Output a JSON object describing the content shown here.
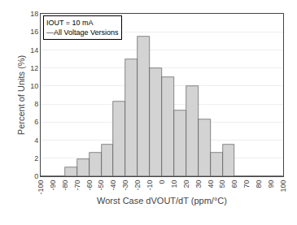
{
  "chart_data": {
    "type": "bar",
    "x": [
      -95,
      -85,
      -75,
      -65,
      -55,
      -45,
      -35,
      -25,
      -15,
      -5,
      5,
      15,
      25,
      35,
      45,
      55,
      65,
      75,
      85,
      95
    ],
    "values": [
      0,
      0,
      1.0,
      1.9,
      2.6,
      3.5,
      8.3,
      13.0,
      15.5,
      12.0,
      11.0,
      7.3,
      10.0,
      6.3,
      2.6,
      3.5,
      0,
      0,
      0,
      0
    ],
    "color": "#d3d3d3",
    "xlabel": "Worst Case dVOUT/dT (ppm/°C)",
    "ylabel": "Percent of Units (%)",
    "annotations": [
      "IOUT = 10 mA",
      "—All Voltage Versions"
    ],
    "xlim": [
      -100,
      100
    ],
    "xticks": [
      -100,
      -90,
      -80,
      -70,
      -60,
      -50,
      -40,
      -30,
      -20,
      -10,
      0,
      10,
      20,
      30,
      40,
      50,
      60,
      70,
      80,
      90,
      100
    ],
    "ylim": [
      0,
      18
    ],
    "yticks": [
      0,
      2,
      4,
      6,
      8,
      10,
      12,
      14,
      16,
      18
    ],
    "grid": true
  }
}
